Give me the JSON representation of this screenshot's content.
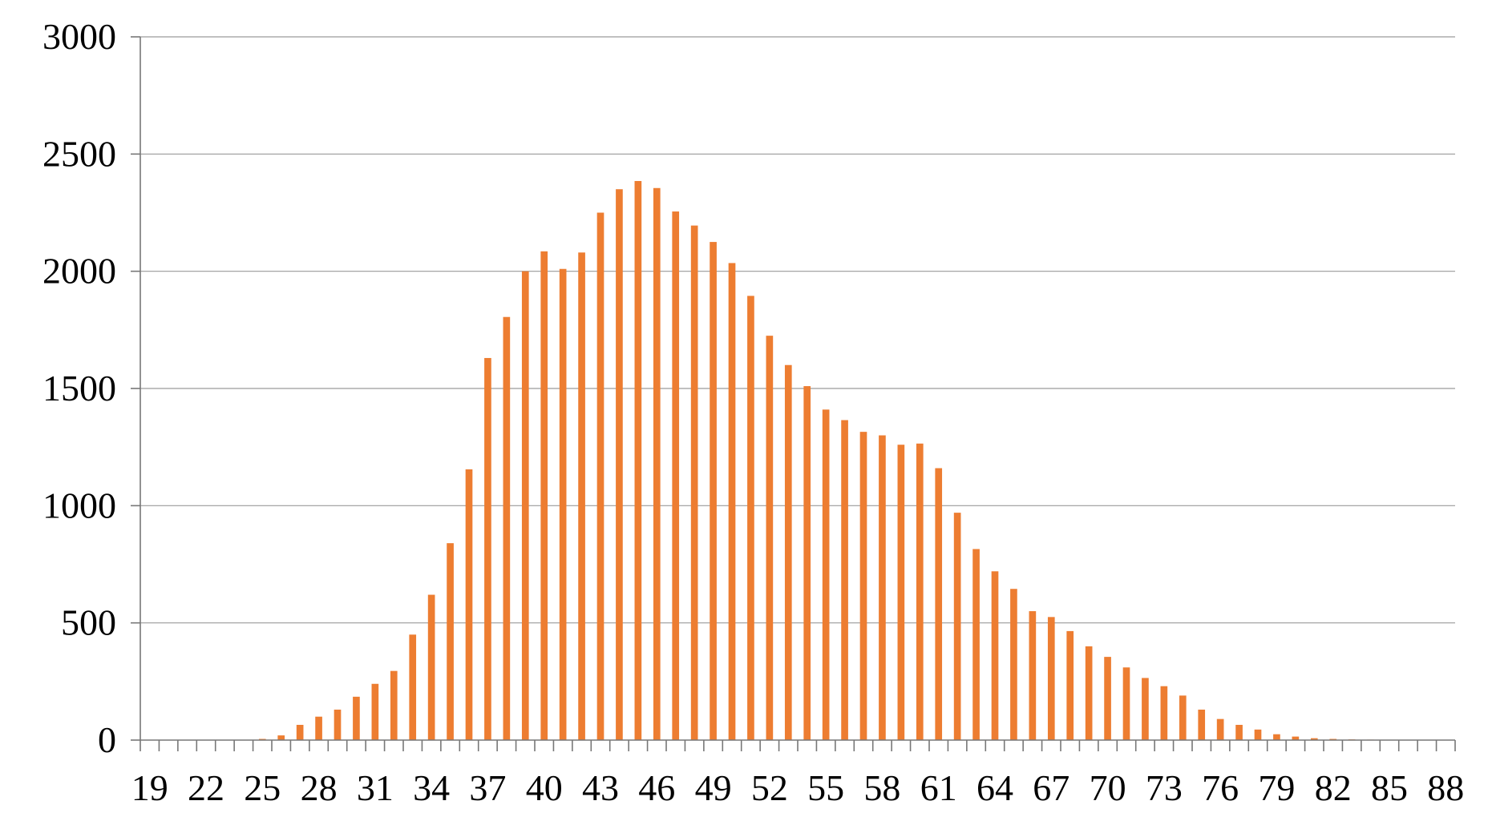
{
  "chart_data": {
    "type": "bar",
    "title": "",
    "xlabel": "",
    "ylabel": "",
    "ylim": [
      0,
      3000
    ],
    "y_ticks": [
      "0",
      "500",
      "1000",
      "1500",
      "2000",
      "2500",
      "3000"
    ],
    "x_tick_labels": [
      "19",
      "22",
      "25",
      "28",
      "31",
      "34",
      "37",
      "40",
      "43",
      "46",
      "49",
      "52",
      "55",
      "58",
      "61",
      "64",
      "67",
      "70",
      "73",
      "76",
      "79",
      "82",
      "85",
      "88"
    ],
    "grid": "horizontal",
    "legend": "none",
    "bar_color": "#ED7D31",
    "categories": [
      19,
      20,
      21,
      22,
      23,
      24,
      25,
      26,
      27,
      28,
      29,
      30,
      31,
      32,
      33,
      34,
      35,
      36,
      37,
      38,
      39,
      40,
      41,
      42,
      43,
      44,
      45,
      46,
      47,
      48,
      49,
      50,
      51,
      52,
      53,
      54,
      55,
      56,
      57,
      58,
      59,
      60,
      61,
      62,
      63,
      64,
      65,
      66,
      67,
      68,
      69,
      70,
      71,
      72,
      73,
      74,
      75,
      76,
      77,
      78,
      79,
      80,
      81,
      82,
      83,
      84,
      85,
      86,
      87,
      88
    ],
    "values": [
      0,
      0,
      0,
      0,
      0,
      0,
      5,
      20,
      65,
      100,
      130,
      185,
      240,
      295,
      450,
      620,
      840,
      1155,
      1630,
      1805,
      2000,
      2085,
      2010,
      2080,
      2250,
      2350,
      2385,
      2355,
      2255,
      2195,
      2125,
      2035,
      1895,
      1725,
      1600,
      1510,
      1410,
      1365,
      1315,
      1300,
      1260,
      1265,
      1160,
      970,
      815,
      720,
      645,
      550,
      525,
      465,
      400,
      355,
      310,
      265,
      230,
      190,
      130,
      90,
      65,
      45,
      25,
      15,
      8,
      5,
      3,
      2,
      1,
      1,
      1,
      0
    ]
  }
}
